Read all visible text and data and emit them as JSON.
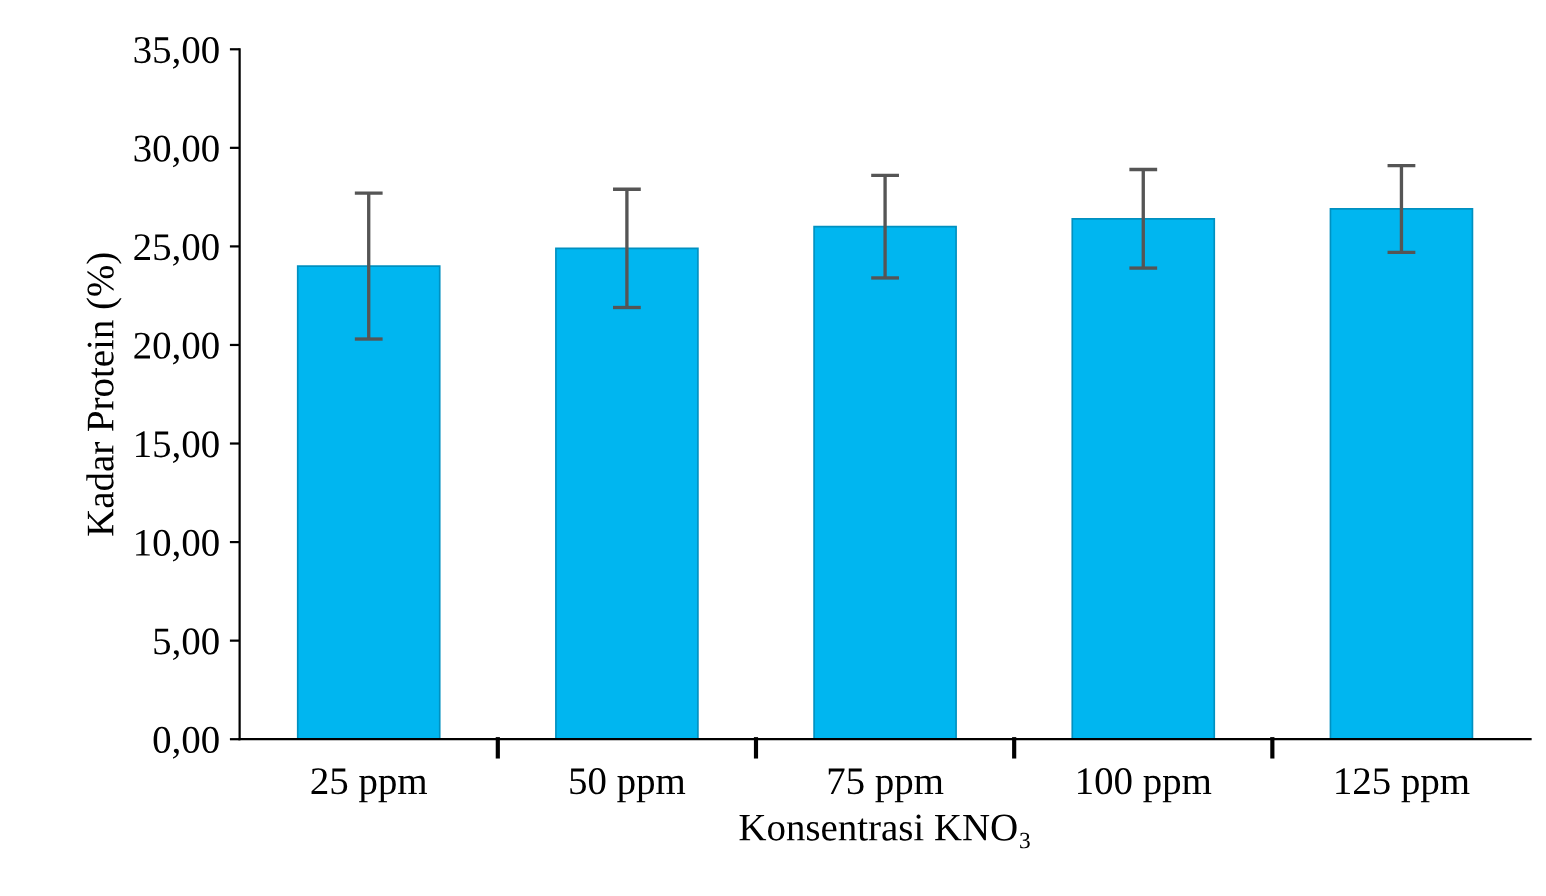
{
  "chart_data": {
    "type": "bar",
    "xlabel": "Konsentrasi KNO₃",
    "ylabel": "Kadar Protein (%)",
    "categories": [
      "25 ppm",
      "50 ppm",
      "75 ppm",
      "100 ppm",
      "125 ppm"
    ],
    "values": [
      24.0,
      24.9,
      26.0,
      26.4,
      26.9
    ],
    "errors": [
      3.7,
      3.0,
      2.6,
      2.5,
      2.2
    ],
    "color": "#00b6f0",
    "ylim": [
      0,
      35
    ],
    "yticks": [
      {
        "value": 0,
        "label": "0,00"
      },
      {
        "value": 5,
        "label": "5,00"
      },
      {
        "value": 10,
        "label": "10,00"
      },
      {
        "value": 15,
        "label": "15,00"
      },
      {
        "value": 20,
        "label": "20,00"
      },
      {
        "value": 25,
        "label": "25,00"
      },
      {
        "value": 30,
        "label": "30,00"
      },
      {
        "value": 35,
        "label": "35,00"
      }
    ],
    "grid": false
  }
}
